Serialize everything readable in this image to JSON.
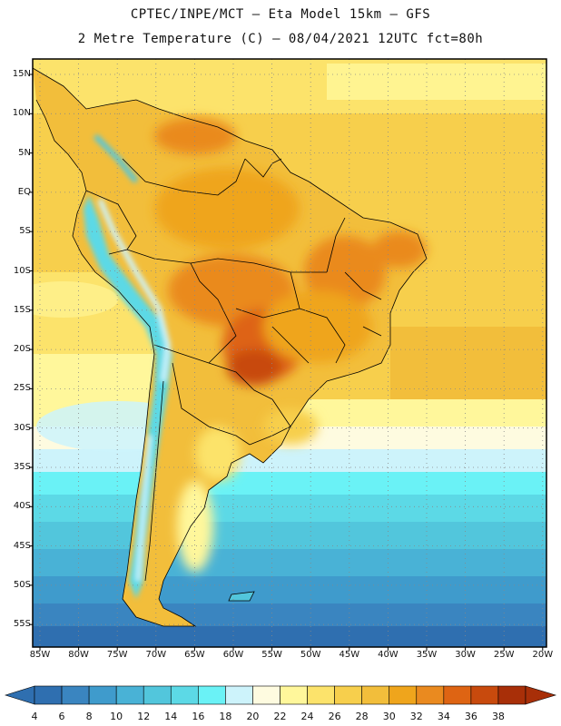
{
  "header": {
    "line1": "CPTEC/INPE/MCT –  Eta Model 15km – GFS",
    "line2": "2 Metre Temperature (C) – 08/04/2021 12UTC fct=80h"
  },
  "axes": {
    "lat_labels": [
      "15N",
      "10N",
      "5N",
      "EQ",
      "5S",
      "10S",
      "15S",
      "20S",
      "25S",
      "30S",
      "35S",
      "40S",
      "45S",
      "50S",
      "55S"
    ],
    "lon_labels": [
      "85W",
      "80W",
      "75W",
      "70W",
      "65W",
      "60W",
      "55W",
      "50W",
      "45W",
      "40W",
      "35W",
      "30W",
      "25W",
      "20W"
    ]
  },
  "colorbar": {
    "values": [
      "4",
      "6",
      "8",
      "10",
      "12",
      "14",
      "16",
      "18",
      "20",
      "22",
      "24",
      "26",
      "28",
      "30",
      "32",
      "34",
      "36",
      "38"
    ],
    "colors": [
      "#2f6fb0",
      "#3a85c0",
      "#3f9bcc",
      "#49b2d6",
      "#52c6dc",
      "#5cd9e6",
      "#6af2f6",
      "#cdf3fb",
      "#fefbe0",
      "#fff79b",
      "#fce36b",
      "#f7cf4c",
      "#f2be3b",
      "#efa51c",
      "#ea8a1f",
      "#de6413",
      "#c84a0d",
      "#a82f08"
    ]
  }
}
